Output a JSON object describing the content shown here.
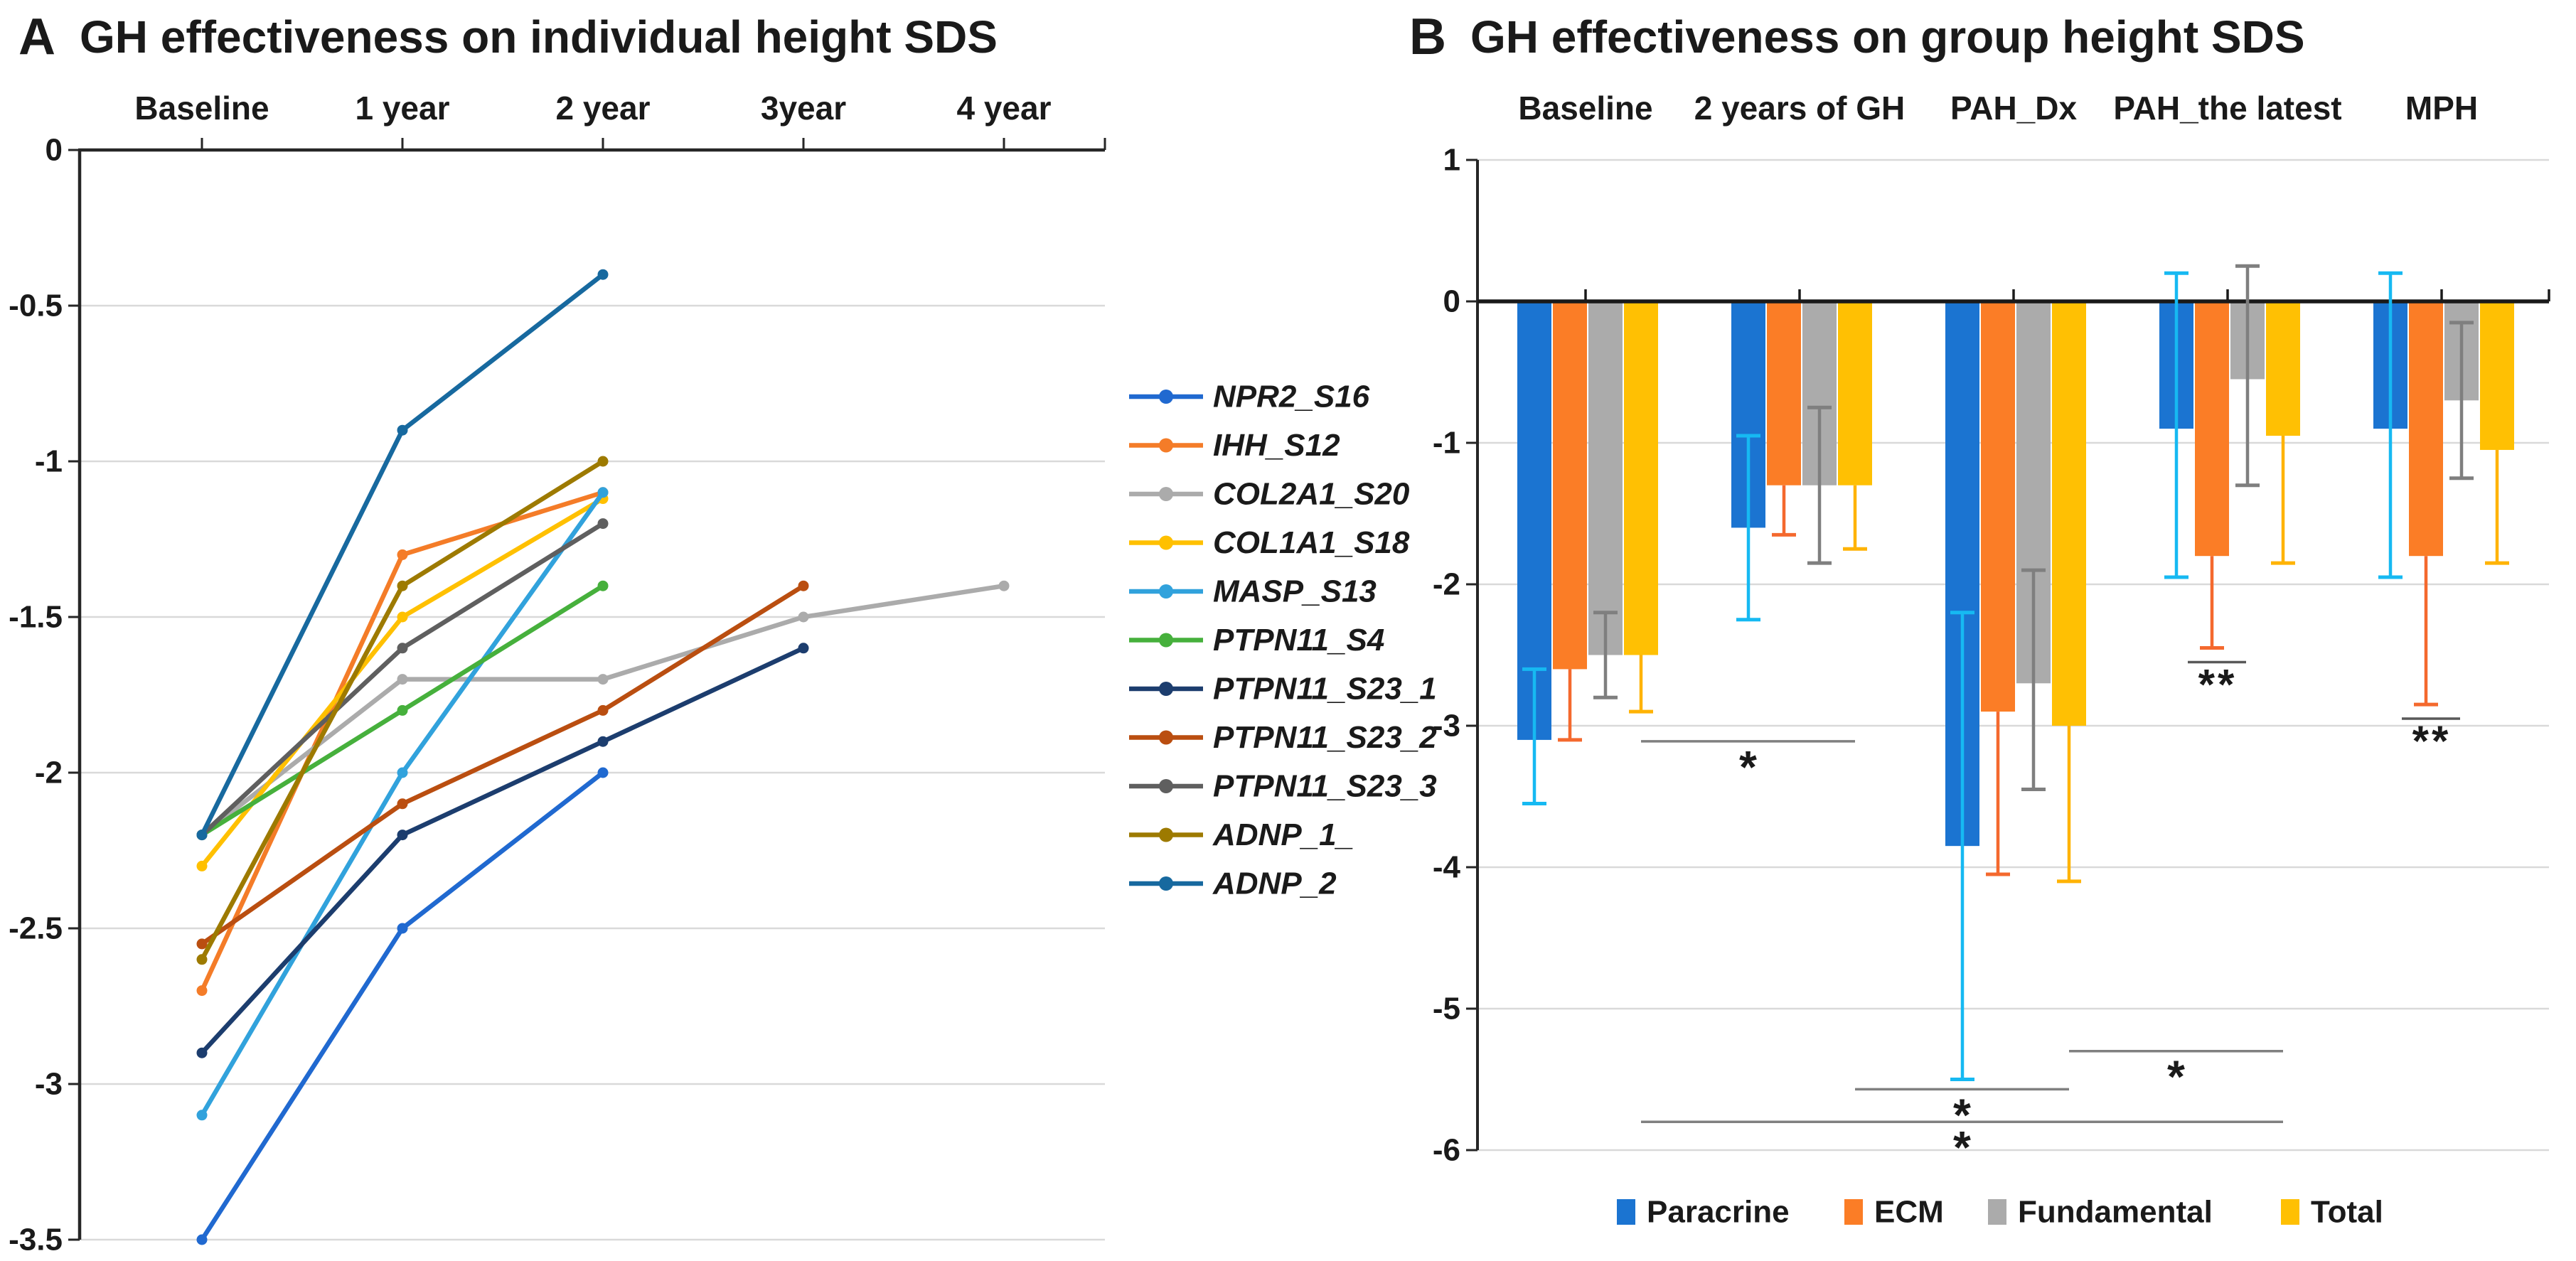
{
  "background_color": "#FFFFFF",
  "chart_data": [
    {
      "type": "line",
      "panel_letter": "A",
      "title": "GH effectiveness on individual height SDS",
      "categories": [
        "Baseline",
        "1 year",
        "2 year",
        "3year",
        "4 year"
      ],
      "y_ticks": [
        0,
        -0.5,
        -1,
        -1.5,
        -2,
        -2.5,
        -3,
        -3.5
      ],
      "ylim": [
        -3.5,
        0
      ],
      "xlabel": "",
      "ylabel": "",
      "grid": true,
      "grid_color": "#D9D9D9",
      "axis_color": "#262626",
      "legend_position": "right",
      "series": [
        {
          "name": "NPR2_S16",
          "color": "#2069D0",
          "values": [
            -3.5,
            -2.5,
            -2.0,
            null,
            null
          ]
        },
        {
          "name": "IHH_S12",
          "color": "#F47C28",
          "values": [
            -2.7,
            -1.3,
            -1.1,
            null,
            null
          ]
        },
        {
          "name": "COL2A1_S20",
          "color": "#ABABAB",
          "values": [
            -2.2,
            -1.7,
            -1.7,
            -1.5,
            -1.4
          ]
        },
        {
          "name": "COL1A1_S18",
          "color": "#FFC000",
          "values": [
            -2.3,
            -1.5,
            -1.12,
            null,
            null
          ]
        },
        {
          "name": "MASP_S13",
          "color": "#31A2DC",
          "values": [
            -3.1,
            -2.0,
            -1.1,
            null,
            null
          ]
        },
        {
          "name": "PTPN11_S4",
          "color": "#46B03C",
          "values": [
            -2.2,
            -1.8,
            -1.4,
            null,
            null
          ]
        },
        {
          "name": "PTPN11_S23_1",
          "color": "#1C3D6E",
          "values": [
            -2.9,
            -2.2,
            -1.9,
            -1.6,
            null
          ]
        },
        {
          "name": "PTPN11_S23_2",
          "color": "#BA4E10",
          "values": [
            -2.55,
            -2.1,
            -1.8,
            -1.4,
            null
          ]
        },
        {
          "name": "PTPN11_S23_3",
          "color": "#5F5F5F",
          "values": [
            -2.2,
            -1.6,
            -1.2,
            null,
            null
          ]
        },
        {
          "name": "ADNP_1_",
          "color": "#9D7A00",
          "values": [
            -2.6,
            -1.4,
            -1.0,
            null,
            null
          ]
        },
        {
          "name": "ADNP_2",
          "color": "#17699F",
          "values": [
            -2.2,
            -0.9,
            -0.4,
            null,
            null
          ]
        }
      ]
    },
    {
      "type": "bar",
      "panel_letter": "B",
      "title": "GH effectiveness on group height SDS",
      "categories": [
        "Baseline",
        "2 years of GH",
        "PAH_Dx",
        "PAH_the latest",
        "MPH"
      ],
      "y_ticks": [
        1,
        0,
        -1,
        -2,
        -3,
        -4,
        -5,
        -6
      ],
      "ylim": [
        -6,
        1
      ],
      "xlabel": "",
      "ylabel": "",
      "grid": true,
      "grid_color": "#D9D9D9",
      "axis_color": "#262626",
      "legend_position": "bottom",
      "series": [
        {
          "name": "Paracrine",
          "color": "#1B74D1",
          "error_color": "#16B9F2",
          "values": [
            -3.1,
            -1.6,
            -3.85,
            -0.9,
            -0.9
          ],
          "error_top": [
            -2.6,
            -0.95,
            -2.2,
            0.2,
            0.2
          ],
          "error_bottom": [
            -3.55,
            -2.25,
            -5.5,
            -1.95,
            -1.95
          ]
        },
        {
          "name": "ECM",
          "color": "#FB7D26",
          "error_color": "#F4692E",
          "values": [
            -2.6,
            -1.3,
            -2.9,
            -1.8,
            -1.8
          ],
          "error_top": [
            null,
            null,
            null,
            null,
            null
          ],
          "error_bottom": [
            -3.1,
            -1.65,
            -4.05,
            -2.45,
            -2.85
          ]
        },
        {
          "name": "Fundamental",
          "color": "#ABABAB",
          "error_color": "#7F7F7F",
          "values": [
            -2.5,
            -1.3,
            -2.7,
            -0.55,
            -0.7
          ],
          "error_top": [
            -2.2,
            -0.75,
            -1.9,
            0.25,
            -0.15
          ],
          "error_bottom": [
            -2.8,
            -1.85,
            -3.45,
            -1.3,
            -1.25
          ]
        },
        {
          "name": "Total",
          "color": "#FFC003",
          "error_color": "#FFB305",
          "values": [
            -2.5,
            -1.3,
            -3.0,
            -0.95,
            -1.05
          ],
          "error_top": [
            null,
            null,
            null,
            null,
            null
          ],
          "error_bottom": [
            -2.9,
            -1.75,
            -4.1,
            -1.85,
            -1.85
          ]
        }
      ],
      "significance": [
        {
          "symbol": "*",
          "type": "line",
          "from_group": 0,
          "to_group": 1,
          "y": -3.11
        },
        {
          "symbol": "**",
          "type": "overline",
          "group": 3,
          "y": -2.55
        },
        {
          "symbol": "**",
          "type": "overline",
          "group": 4,
          "y": -2.95
        },
        {
          "symbol": "*",
          "type": "line",
          "from_group": 2,
          "to_group": 3,
          "y": -5.3
        },
        {
          "symbol": "*",
          "type": "line",
          "from_group": 1,
          "to_group": 2,
          "y": -5.57
        },
        {
          "symbol": "*",
          "type": "line",
          "from_group": 0,
          "to_group": 3,
          "y": -5.8
        }
      ]
    }
  ]
}
